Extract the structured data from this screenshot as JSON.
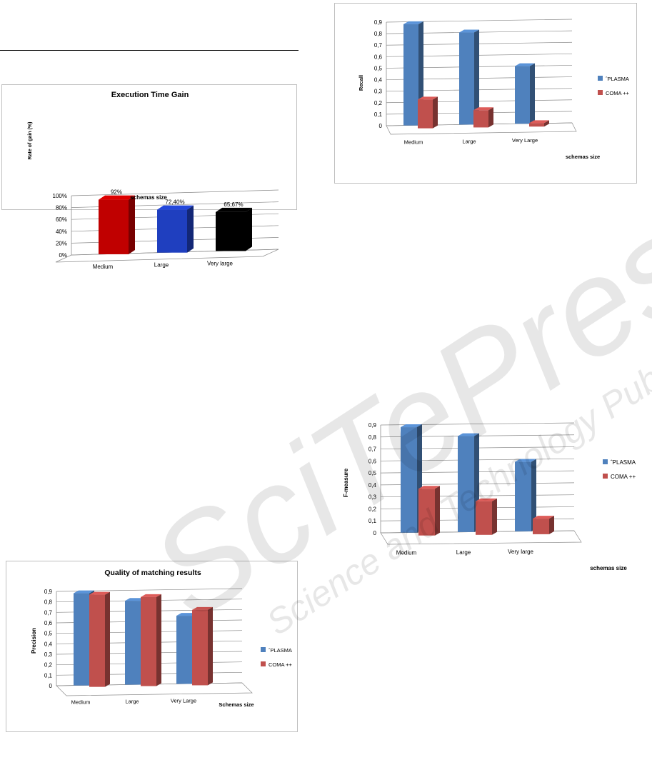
{
  "chart_data": [
    {
      "type": "bar",
      "title": "Execution Time Gain",
      "xlabel": "schemas size",
      "ylabel": "Rate of gain (%)",
      "categories": [
        "Medium",
        "Large",
        "Very large"
      ],
      "values": [
        92,
        72.4,
        65.67
      ],
      "data_labels": [
        "92%",
        "72,40%",
        "65,67%"
      ],
      "colors": [
        "#c00000",
        "#1f3fbf",
        "#000000"
      ],
      "yticks": [
        "0%",
        "20%",
        "40%",
        "60%",
        "80%",
        "100%"
      ],
      "ylim": [
        0,
        100
      ],
      "grid": true
    },
    {
      "type": "bar",
      "title": "",
      "xlabel": "schemas size",
      "ylabel": "Recall",
      "categories": [
        "Medium",
        "Large",
        "Very Large"
      ],
      "series": [
        {
          "name": "ˆPLASMA",
          "values": [
            0.88,
            0.8,
            0.5
          ],
          "color": "#4f81bd"
        },
        {
          "name": "COMA ++",
          "values": [
            0.25,
            0.15,
            0.03
          ],
          "color": "#c0504d"
        }
      ],
      "yticks": [
        "0",
        "0,1",
        "0,2",
        "0,3",
        "0,4",
        "0,5",
        "0,6",
        "0,7",
        "0,8",
        "0,9"
      ],
      "ylim": [
        0,
        0.9
      ],
      "legend": "right",
      "grid": true
    },
    {
      "type": "bar",
      "title": "",
      "xlabel": "schemas size",
      "ylabel": "F-measure",
      "categories": [
        "Medium",
        "Large",
        "Very large"
      ],
      "series": [
        {
          "name": "ˆPLASMA",
          "values": [
            0.88,
            0.8,
            0.58
          ],
          "color": "#4f81bd"
        },
        {
          "name": "COMA ++",
          "values": [
            0.39,
            0.28,
            0.13
          ],
          "color": "#c0504d"
        }
      ],
      "yticks": [
        "0",
        "0,1",
        "0,2",
        "0,3",
        "0,4",
        "0,5",
        "0,6",
        "0,7",
        "0,8",
        "0,9"
      ],
      "ylim": [
        0,
        0.9
      ],
      "legend": "right",
      "grid": true
    },
    {
      "type": "bar",
      "title": "Quality of matching results",
      "xlabel": "Schemas size",
      "ylabel": "Precision",
      "categories": [
        "Medium",
        "Large",
        "Very Large"
      ],
      "series": [
        {
          "name": "ˆPLASMA",
          "values": [
            0.88,
            0.8,
            0.65
          ],
          "color": "#4f81bd"
        },
        {
          "name": "COMA ++",
          "values": [
            0.88,
            0.85,
            0.72
          ],
          "color": "#c0504d"
        }
      ],
      "yticks": [
        "0",
        "0,1",
        "0,2",
        "0,3",
        "0,4",
        "0,5",
        "0,6",
        "0,7",
        "0,8",
        "0,9"
      ],
      "ylim": [
        0,
        0.9
      ],
      "legend": "right",
      "grid": true
    }
  ],
  "watermark": {
    "brand": "SciTePress",
    "tagline": "Science and Technology Publications"
  }
}
